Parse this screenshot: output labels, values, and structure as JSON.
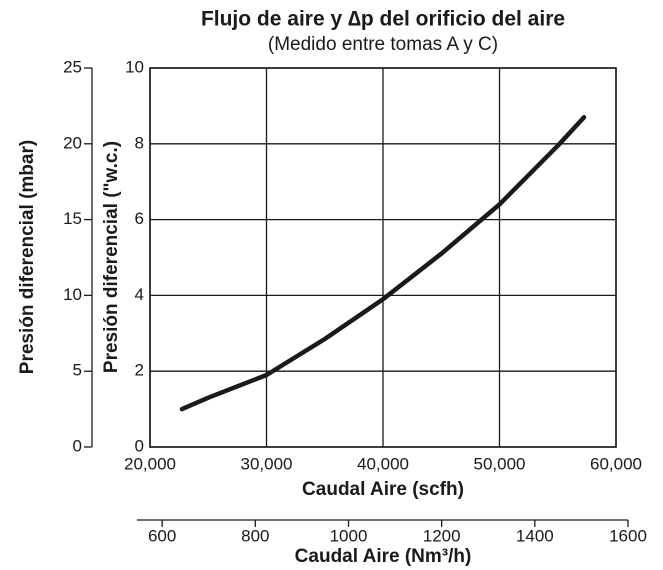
{
  "chart_data": {
    "type": "line",
    "title": "Flujo de aire y ∆p del orificio del aire",
    "subtitle": "(Medido entre tomas A y C)",
    "xlabel": "Caudal Aire (scfh)",
    "ylabel": "Presión diferencial (\"w.c.)",
    "y2label": "Presión diferencial (mbar)",
    "x2label": "Caudal Aire (Nm³/h)",
    "x": [
      22750,
      25000,
      30000,
      35000,
      40000,
      45000,
      50000,
      55000,
      57250
    ],
    "series": [
      {
        "name": "Flujo de aire",
        "color": "#1a1a1a",
        "values": [
          1.0,
          1.3,
          1.9,
          2.85,
          3.9,
          5.1,
          6.4,
          7.95,
          8.7
        ]
      }
    ],
    "xlim": [
      20000,
      60000
    ],
    "xticks": [
      {
        "value": 20000,
        "label": "20,000"
      },
      {
        "value": 30000,
        "label": "30,000"
      },
      {
        "value": 40000,
        "label": "40,000"
      },
      {
        "value": 50000,
        "label": "50,000"
      },
      {
        "value": 60000,
        "label": "60,000"
      }
    ],
    "ylim": [
      0,
      10
    ],
    "yticks": [
      0,
      2,
      4,
      6,
      8,
      10
    ],
    "y2lim": [
      0,
      25
    ],
    "y2ticks": [
      0,
      5,
      10,
      15,
      20,
      25
    ],
    "x2lim": [
      546,
      1600
    ],
    "x2ticks": [
      600,
      800,
      1000,
      1200,
      1400,
      1600
    ],
    "grid": true
  }
}
